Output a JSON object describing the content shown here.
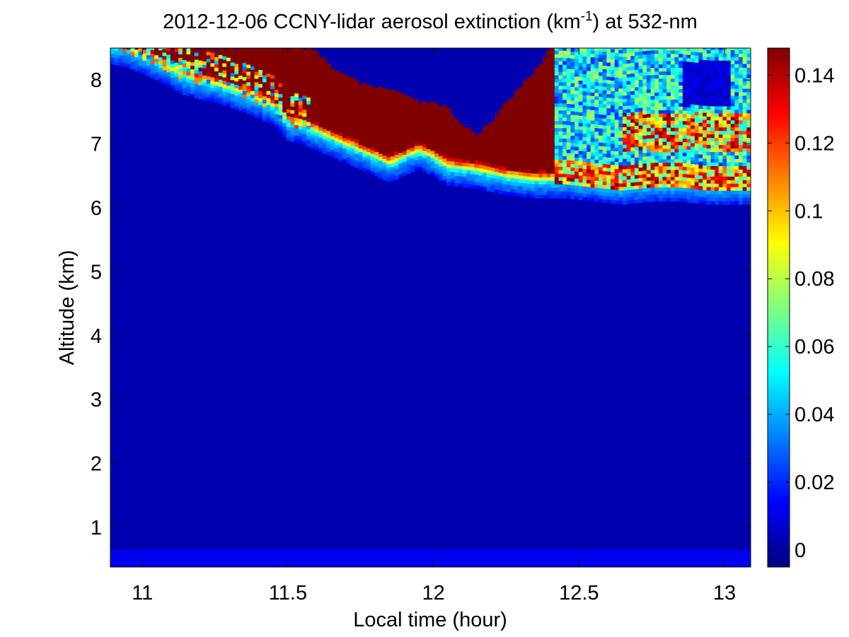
{
  "chart_data": {
    "type": "heatmap",
    "title_main": "2012-12-06 CCNY-lidar aerosol extinction (km",
    "title_sup": "-1",
    "title_tail": ") at 532-nm",
    "xlabel": "Local time (hour)",
    "ylabel": "Altitude (km)",
    "xlim": [
      10.89,
      13.09
    ],
    "ylim": [
      0.38,
      8.5
    ],
    "xticks": [
      11,
      11.5,
      12,
      12.5,
      13
    ],
    "xtick_labels": [
      "11",
      "11.5",
      "12",
      "12.5",
      "13"
    ],
    "yticks": [
      1,
      2,
      3,
      4,
      5,
      6,
      7,
      8
    ],
    "ytick_labels": [
      "1",
      "2",
      "3",
      "4",
      "5",
      "6",
      "7",
      "8"
    ],
    "colorbar": {
      "colormap": "jet",
      "clim": [
        -0.005,
        0.148
      ],
      "ticks": [
        0,
        0.02,
        0.04,
        0.06,
        0.08,
        0.1,
        0.12,
        0.14
      ],
      "tick_labels": [
        "0",
        "0.02",
        "0.04",
        "0.06",
        "0.08",
        "0.1",
        "0.12",
        "0.14"
      ]
    },
    "background_extinction": 0.002,
    "near_surface_layer": {
      "altitude_range": [
        0.38,
        0.65
      ],
      "extinction": 0.012
    },
    "cloud_base_altitude": {
      "x": [
        10.89,
        10.95,
        11.05,
        11.15,
        11.25,
        11.35,
        11.45,
        11.5,
        11.55,
        11.65,
        11.75,
        11.85,
        11.95,
        12.0,
        12.05,
        12.15,
        12.25,
        12.35,
        12.45,
        12.55,
        12.65,
        12.75,
        12.85,
        12.95,
        13.05,
        13.09
      ],
      "y": [
        8.5,
        8.45,
        8.25,
        8.0,
        7.9,
        7.75,
        7.55,
        7.3,
        7.25,
        7.05,
        6.85,
        6.65,
        6.85,
        6.75,
        6.6,
        6.55,
        6.45,
        6.4,
        6.4,
        6.35,
        6.3,
        6.35,
        6.35,
        6.3,
        6.3,
        6.3
      ]
    },
    "cloud_top_altitude": {
      "x": [
        11.59,
        11.65,
        11.75,
        11.85,
        11.95,
        12.0,
        12.05,
        12.1,
        12.15,
        12.2,
        12.25,
        12.3,
        12.35,
        12.38,
        12.4
      ],
      "y": [
        8.5,
        8.2,
        7.95,
        7.85,
        7.65,
        7.65,
        7.55,
        7.3,
        7.15,
        7.35,
        7.65,
        7.9,
        8.15,
        8.35,
        8.5
      ]
    },
    "broken_cloud_region": {
      "x_range": [
        12.42,
        13.09
      ],
      "altitude_range": [
        6.3,
        8.5
      ]
    }
  }
}
